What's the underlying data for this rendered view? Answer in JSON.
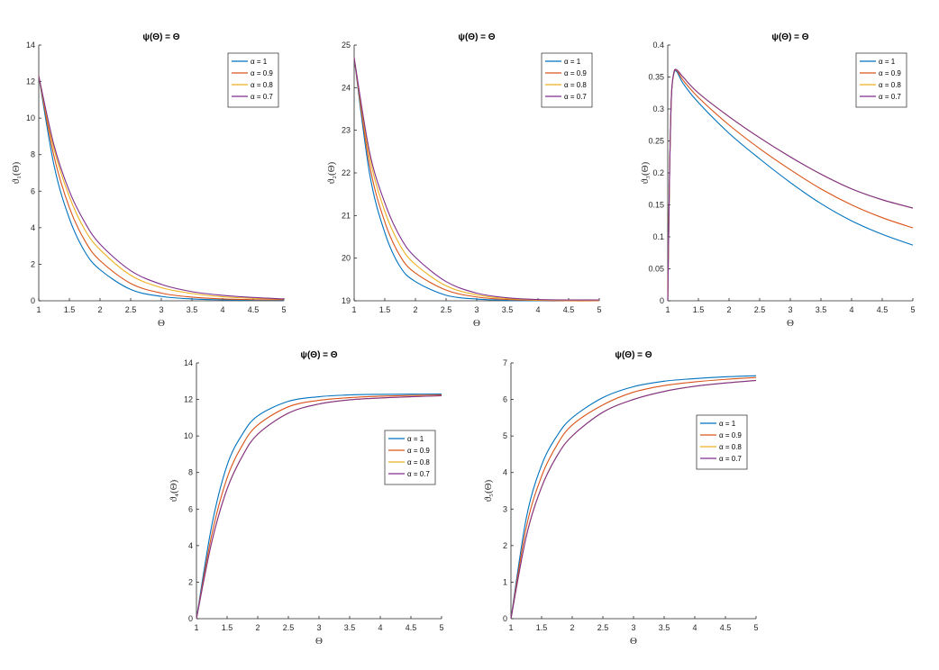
{
  "chart_data": [
    {
      "type": "line",
      "title": "ψ(Θ) = Θ",
      "xlabel": "Θ",
      "ylabel": "ϑ₁(Θ)",
      "xlim": [
        1,
        5
      ],
      "ylim": [
        0,
        14
      ],
      "xticks": [
        1,
        1.5,
        2,
        2.5,
        3,
        3.5,
        4,
        4.5,
        5
      ],
      "xtick_labels": [
        "1",
        "1.5",
        "2",
        "2.5",
        "3",
        "3.5",
        "4",
        "4.5",
        "5"
      ],
      "yticks": [
        0,
        2,
        4,
        6,
        8,
        10,
        12,
        14
      ],
      "ytick_labels": [
        "0",
        "2",
        "4",
        "6",
        "8",
        "10",
        "12",
        "14"
      ],
      "legend_position": "top-right",
      "x": [
        1,
        1.25,
        1.5,
        1.75,
        2,
        2.5,
        3,
        3.5,
        4,
        4.5,
        5
      ],
      "series": [
        {
          "name": "α = 1",
          "color": "#0072BD",
          "values": [
            12.3,
            7.4,
            4.5,
            2.7,
            1.7,
            0.62,
            0.24,
            0.1,
            0.05,
            0.03,
            0.02
          ]
        },
        {
          "name": "α = 0.9",
          "color": "#D95319",
          "values": [
            12.3,
            7.9,
            5.1,
            3.3,
            2.2,
            0.95,
            0.42,
            0.2,
            0.1,
            0.06,
            0.05
          ]
        },
        {
          "name": "α = 0.8",
          "color": "#EDB120",
          "values": [
            12.3,
            8.3,
            5.7,
            3.9,
            2.8,
            1.4,
            0.72,
            0.4,
            0.22,
            0.14,
            0.09
          ]
        },
        {
          "name": "α = 0.7",
          "color": "#7E2F8E",
          "values": [
            12.3,
            8.5,
            6.0,
            4.3,
            3.1,
            1.65,
            0.9,
            0.5,
            0.3,
            0.18,
            0.1
          ]
        }
      ]
    },
    {
      "type": "line",
      "title": "ψ(Θ) = Θ",
      "xlabel": "Θ",
      "ylabel": "ϑ₂(Θ)",
      "xlim": [
        1,
        5
      ],
      "ylim": [
        19,
        25
      ],
      "xticks": [
        1,
        1.5,
        2,
        2.5,
        3,
        3.5,
        4,
        4.5,
        5
      ],
      "xtick_labels": [
        "1",
        "1.5",
        "2",
        "2.5",
        "3",
        "3.5",
        "4",
        "4.5",
        "5"
      ],
      "yticks": [
        19,
        20,
        21,
        22,
        23,
        24,
        25
      ],
      "ytick_labels": [
        "19",
        "20",
        "21",
        "22",
        "23",
        "24",
        "25"
      ],
      "legend_position": "top-right",
      "x": [
        1,
        1.25,
        1.5,
        1.75,
        2,
        2.5,
        3,
        3.5,
        4,
        4.5,
        5
      ],
      "series": [
        {
          "name": "α = 1",
          "color": "#0072BD",
          "values": [
            24.7,
            22.0,
            20.6,
            19.8,
            19.45,
            19.13,
            19.04,
            19.01,
            19.0,
            19.0,
            19.0
          ]
        },
        {
          "name": "α = 0.9",
          "color": "#D95319",
          "values": [
            24.7,
            22.2,
            20.85,
            20.05,
            19.65,
            19.25,
            19.09,
            19.03,
            19.01,
            19.0,
            19.0
          ]
        },
        {
          "name": "α = 0.8",
          "color": "#EDB120",
          "values": [
            24.7,
            22.4,
            21.1,
            20.3,
            19.85,
            19.35,
            19.14,
            19.05,
            19.02,
            19.01,
            19.01
          ]
        },
        {
          "name": "α = 0.7",
          "color": "#7E2F8E",
          "values": [
            24.7,
            22.5,
            21.3,
            20.5,
            20.02,
            19.45,
            19.18,
            19.07,
            19.03,
            19.02,
            19.02
          ]
        }
      ]
    },
    {
      "type": "line",
      "title": "ψ(Θ) = Θ",
      "xlabel": "Θ",
      "ylabel": "ϑ₃(Θ)",
      "xlim": [
        1,
        5
      ],
      "ylim": [
        0,
        0.4
      ],
      "xticks": [
        1,
        1.5,
        2,
        2.5,
        3,
        3.5,
        4,
        4.5,
        5
      ],
      "xtick_labels": [
        "1",
        "1.5",
        "2",
        "2.5",
        "3",
        "3.5",
        "4",
        "4.5",
        "5"
      ],
      "yticks": [
        0,
        0.05,
        0.1,
        0.15,
        0.2,
        0.25,
        0.3,
        0.35,
        0.4
      ],
      "ytick_labels": [
        "0",
        "0.05",
        "0.1",
        "0.15",
        "0.2",
        "0.25",
        "0.3",
        "0.35",
        "0.4"
      ],
      "legend_position": "top-right",
      "x": [
        1,
        1.03,
        1.06,
        1.1,
        1.15,
        1.25,
        1.5,
        2,
        2.5,
        3,
        3.5,
        4,
        4.5,
        5
      ],
      "series": [
        {
          "name": "α = 1",
          "color": "#0072BD",
          "values": [
            0,
            0.2,
            0.32,
            0.355,
            0.358,
            0.34,
            0.31,
            0.262,
            0.222,
            0.185,
            0.152,
            0.125,
            0.104,
            0.087
          ]
        },
        {
          "name": "α = 0.9",
          "color": "#D95319",
          "values": [
            0,
            0.2,
            0.32,
            0.356,
            0.36,
            0.345,
            0.318,
            0.275,
            0.238,
            0.205,
            0.175,
            0.15,
            0.13,
            0.114
          ]
        },
        {
          "name": "α = 0.8",
          "color": "#EDB120",
          "values": [
            0,
            0.2,
            0.32,
            0.357,
            0.361,
            0.35,
            0.325,
            0.288,
            0.255,
            0.225,
            0.198,
            0.175,
            0.158,
            0.145
          ]
        },
        {
          "name": "α = 0.7",
          "color": "#7E2F8E",
          "values": [
            0,
            0.2,
            0.32,
            0.357,
            0.361,
            0.35,
            0.325,
            0.288,
            0.255,
            0.225,
            0.198,
            0.175,
            0.158,
            0.145
          ]
        }
      ]
    },
    {
      "type": "line",
      "title": "ψ(Θ) = Θ",
      "xlabel": "Θ",
      "ylabel": "ϑ₄(Θ)",
      "xlim": [
        1,
        5
      ],
      "ylim": [
        0,
        14
      ],
      "xticks": [
        1,
        1.5,
        2,
        2.5,
        3,
        3.5,
        4,
        4.5,
        5
      ],
      "xtick_labels": [
        "1",
        "1.5",
        "2",
        "2.5",
        "3",
        "3.5",
        "4",
        "4.5",
        "5"
      ],
      "yticks": [
        0,
        2,
        4,
        6,
        8,
        10,
        12,
        14
      ],
      "ytick_labels": [
        "0",
        "2",
        "4",
        "6",
        "8",
        "10",
        "12",
        "14"
      ],
      "legend_position": "middle-right",
      "x": [
        1,
        1.25,
        1.5,
        1.75,
        2,
        2.5,
        3,
        3.5,
        4,
        4.5,
        5
      ],
      "series": [
        {
          "name": "α = 1",
          "color": "#0072BD",
          "values": [
            0,
            5.1,
            8.4,
            10.1,
            11.1,
            11.9,
            12.15,
            12.25,
            12.28,
            12.29,
            12.3
          ]
        },
        {
          "name": "α = 0.9",
          "color": "#D95319",
          "values": [
            0,
            4.6,
            7.7,
            9.5,
            10.6,
            11.6,
            11.95,
            12.1,
            12.18,
            12.22,
            12.25
          ]
        },
        {
          "name": "α = 0.8",
          "color": "#EDB120",
          "values": [
            0,
            4.2,
            7.1,
            8.9,
            10.1,
            11.25,
            11.75,
            11.98,
            12.08,
            12.15,
            12.2
          ]
        },
        {
          "name": "α = 0.7",
          "color": "#7E2F8E",
          "values": [
            0,
            4.2,
            7.1,
            8.9,
            10.1,
            11.25,
            11.75,
            11.98,
            12.08,
            12.15,
            12.2
          ]
        }
      ]
    },
    {
      "type": "line",
      "title": "ψ(Θ) = Θ",
      "xlabel": "Θ",
      "ylabel": "ϑ₅(Θ)",
      "xlim": [
        1,
        5
      ],
      "ylim": [
        0,
        7
      ],
      "xticks": [
        1,
        1.5,
        2,
        2.5,
        3,
        3.5,
        4,
        4.5,
        5
      ],
      "xtick_labels": [
        "1",
        "1.5",
        "2",
        "2.5",
        "3",
        "3.5",
        "4",
        "4.5",
        "5"
      ],
      "yticks": [
        0,
        1,
        2,
        3,
        4,
        5,
        6,
        7
      ],
      "ytick_labels": [
        "0",
        "1",
        "2",
        "3",
        "4",
        "5",
        "6",
        "7"
      ],
      "legend_position": "middle-right",
      "x": [
        1,
        1.25,
        1.5,
        1.75,
        2,
        2.5,
        3,
        3.5,
        4,
        4.5,
        5
      ],
      "series": [
        {
          "name": "α = 1",
          "color": "#0072BD",
          "values": [
            0,
            2.75,
            4.2,
            5.0,
            5.5,
            6.05,
            6.35,
            6.5,
            6.57,
            6.62,
            6.65
          ]
        },
        {
          "name": "α = 0.9",
          "color": "#D95319",
          "values": [
            0,
            2.5,
            3.9,
            4.75,
            5.3,
            5.85,
            6.2,
            6.38,
            6.48,
            6.55,
            6.6
          ]
        },
        {
          "name": "α = 0.8",
          "color": "#EDB120",
          "values": [
            0,
            2.25,
            3.6,
            4.45,
            5.0,
            5.65,
            6.0,
            6.22,
            6.36,
            6.45,
            6.52
          ]
        },
        {
          "name": "α = 0.7",
          "color": "#7E2F8E",
          "values": [
            0,
            2.25,
            3.6,
            4.45,
            5.0,
            5.65,
            6.0,
            6.22,
            6.36,
            6.45,
            6.52
          ]
        }
      ]
    }
  ]
}
